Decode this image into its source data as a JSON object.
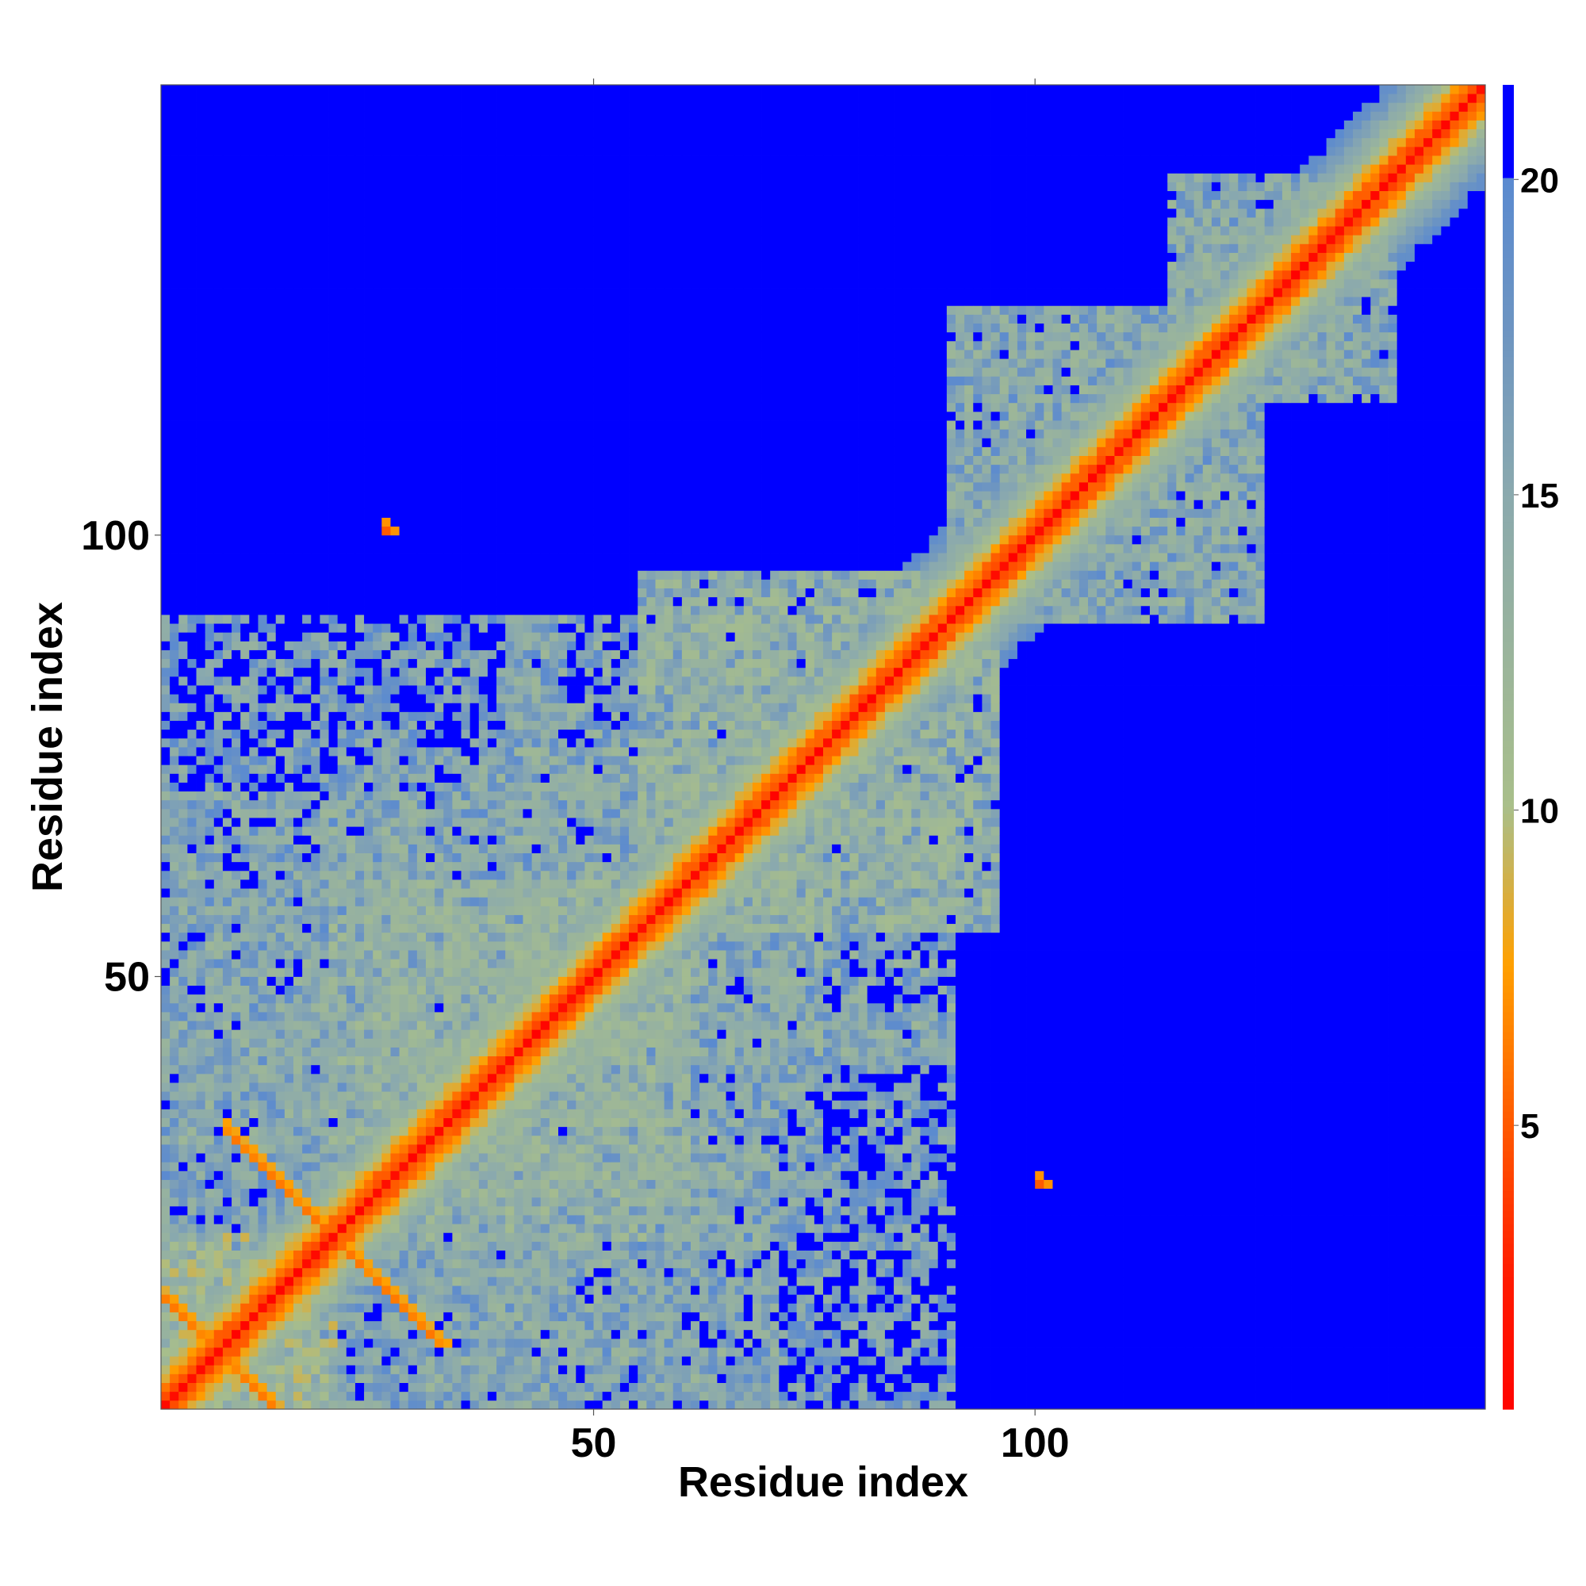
{
  "chart_data": {
    "type": "heatmap",
    "title": "",
    "xlabel": "Residue index",
    "ylabel": "Residue index",
    "n_residues": 150,
    "xlim": [
      1,
      151
    ],
    "ylim": [
      1,
      151
    ],
    "x_ticks": [
      50,
      100
    ],
    "y_ticks": [
      50,
      100
    ],
    "colorbar": {
      "ticks": [
        5,
        10,
        15,
        20
      ],
      "range": [
        0.5,
        21.5
      ],
      "scale": [
        {
          "value": 0,
          "color": "#ff0000"
        },
        {
          "value": 2.5,
          "color": "#ff1a00"
        },
        {
          "value": 5,
          "color": "#ff5a00"
        },
        {
          "value": 7.5,
          "color": "#ffa000"
        },
        {
          "value": 10,
          "color": "#a9bf8a"
        },
        {
          "value": 15,
          "color": "#8aa9ae"
        },
        {
          "value": 17.5,
          "color": "#6e95c1"
        },
        {
          "value": 20,
          "color": "#5a8ad0"
        },
        {
          "value": 20.01,
          "color": "#0000ff"
        },
        {
          "value": 22,
          "color": "#0000ff"
        }
      ]
    },
    "description_of_values": "pairwise residue distance matrix (Å), symmetric, 0 on the diagonal, values above 20 saturate to blue",
    "contact_blocks": [
      {
        "i": [
          1,
          20
        ],
        "j": [
          1,
          20
        ],
        "level": 12
      },
      {
        "i": [
          1,
          30
        ],
        "j": [
          30,
          70
        ],
        "level": 15
      },
      {
        "i": [
          25,
          60
        ],
        "j": [
          20,
          60
        ],
        "level": 14
      },
      {
        "i": [
          25,
          90
        ],
        "j": [
          40,
          75
        ],
        "level": 15
      },
      {
        "i": [
          55,
          95
        ],
        "j": [
          55,
          95
        ],
        "level": 14
      },
      {
        "i": [
          90,
          125
        ],
        "j": [
          90,
          125
        ],
        "level": 15
      },
      {
        "i": [
          115,
          140
        ],
        "j": [
          115,
          140
        ],
        "level": 15
      },
      {
        "i": [
          1,
          90
        ],
        "j": [
          1,
          45
        ],
        "level": 16
      }
    ],
    "antiparallel_strands": [
      {
        "i": [
          1,
          15
        ],
        "j": [
          13,
          1
        ],
        "level": 6
      },
      {
        "i": [
          9,
          32
        ],
        "j": [
          31,
          9
        ],
        "level": 6
      }
    ],
    "isolated_contacts": [
      {
        "i": 26,
        "j": 100,
        "level": 5
      },
      {
        "i": 100,
        "j": 26,
        "level": 5
      }
    ]
  }
}
